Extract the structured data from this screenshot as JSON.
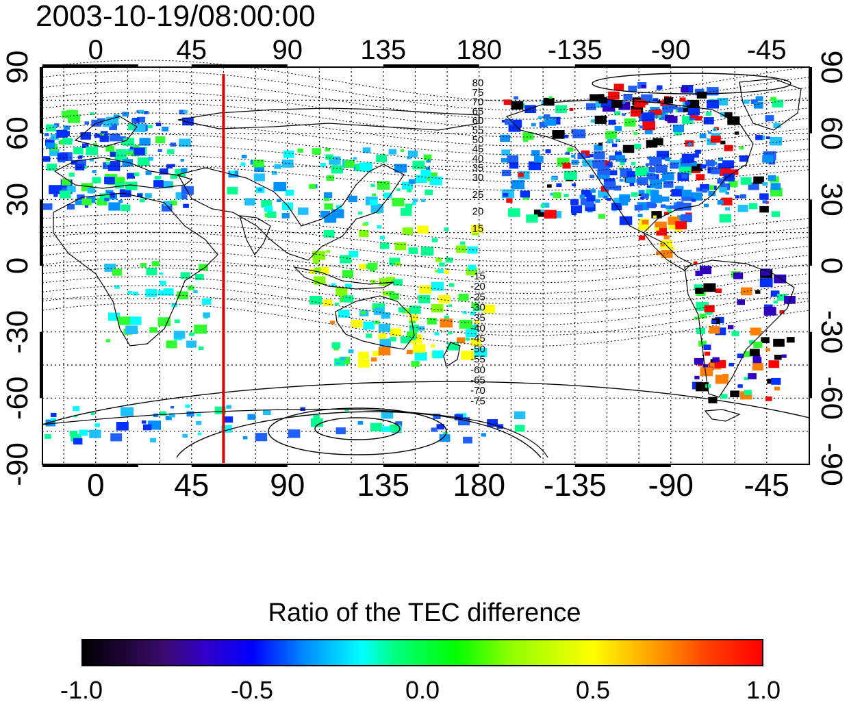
{
  "title": "2003-10-19/08:00:00",
  "map": {
    "lon_ticks": [
      "0",
      "45",
      "90",
      "135",
      "180",
      "-135",
      "-90",
      "-45"
    ],
    "lat_ticks": [
      "90",
      "60",
      "30",
      "0",
      "-30",
      "-60",
      "-90"
    ],
    "contour_labels_north": [
      "80",
      "75",
      "70",
      "65",
      "60",
      "55",
      "50",
      "45",
      "40",
      "35",
      "30",
      "25",
      "20",
      "15"
    ],
    "contour_labels_south": [
      "-15",
      "-20",
      "-25",
      "-30",
      "-35",
      "-40",
      "-45",
      "-50",
      "-55",
      "-60",
      "-65",
      "-70",
      "-75"
    ],
    "meridian_line_lon": 60,
    "meridian_line_color": "#d40000"
  },
  "colorbar": {
    "title": "Ratio of the TEC difference",
    "ticks": [
      "-1.0",
      "-0.5",
      "0.0",
      "0.5",
      "1.0"
    ],
    "range": [
      -1.0,
      1.0
    ]
  }
}
